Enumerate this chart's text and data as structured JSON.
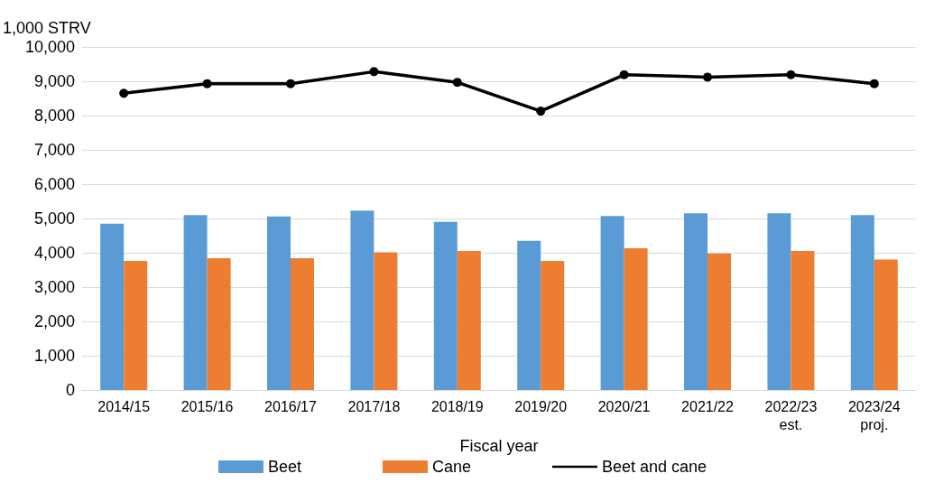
{
  "chart_data": {
    "type": "bar",
    "ylabel": "1,000 STRV",
    "xlabel": "Fiscal year",
    "categories": [
      "2014/15",
      "2015/16",
      "2016/17",
      "2017/18",
      "2018/19",
      "2019/20",
      "2020/21",
      "2021/22",
      "2022/23\nest.",
      "2023/24\nproj."
    ],
    "series": [
      {
        "name": "Beet",
        "color": "#5b9bd5",
        "values": [
          4850,
          5100,
          5060,
          5230,
          4900,
          4350,
          5070,
          5150,
          5150,
          5100
        ]
      },
      {
        "name": "Cane",
        "color": "#ed7d31",
        "values": [
          3760,
          3840,
          3840,
          4010,
          4050,
          3760,
          4130,
          3980,
          4050,
          3800
        ]
      },
      {
        "name": "Beet and cane",
        "type": "line",
        "color": "#000000",
        "marker": "circle",
        "values": [
          8650,
          8930,
          8930,
          9280,
          8970,
          8130,
          9190,
          9120,
          9190,
          8930
        ]
      }
    ],
    "ylim": [
      0,
      10000
    ],
    "yticks": [
      0,
      {
        "value": 1000,
        "label": "1,000"
      },
      {
        "value": 2000,
        "label": "2,000"
      },
      {
        "value": 3000,
        "label": "3,000"
      },
      {
        "value": 4000,
        "label": "4,000"
      },
      {
        "value": 5000,
        "label": "5,000"
      },
      {
        "value": 6000,
        "label": "6,000"
      },
      {
        "value": 7000,
        "label": "7,000"
      },
      {
        "value": 8000,
        "label": "8,000"
      },
      {
        "value": 9000,
        "label": "9,000"
      },
      {
        "value": 10000,
        "label": "10,000"
      }
    ],
    "grid": "y",
    "legend": "bottom"
  }
}
